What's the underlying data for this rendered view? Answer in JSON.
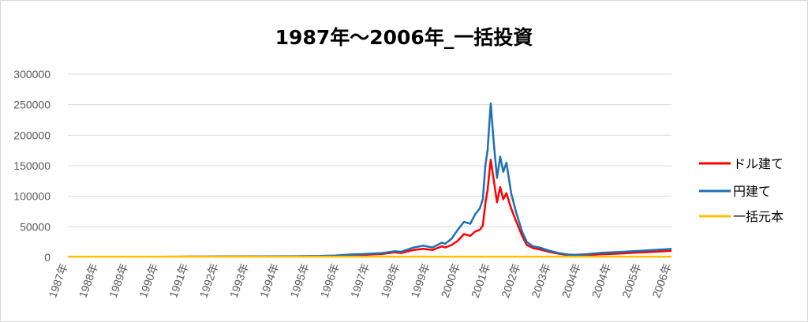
{
  "chart_data": {
    "type": "line",
    "title": "1987年～2006年_一括投資",
    "xlabel": "",
    "ylabel": "",
    "ylim": [
      0,
      300000
    ],
    "yticks": [
      "0",
      "50000",
      "100000",
      "150000",
      "200000",
      "250000",
      "300000"
    ],
    "x_tick_labels": [
      "1987年",
      "1988年",
      "1989年",
      "1990年",
      "1991年",
      "1992年",
      "1993年",
      "1994年",
      "1995年",
      "1996年",
      "1997年",
      "1998年",
      "1999年",
      "2000年",
      "2001年",
      "2002年",
      "2003年",
      "2004年",
      "2004年",
      "2005年",
      "2006年"
    ],
    "grid": true,
    "legend_position": "right",
    "series": [
      {
        "name": "ドル建て",
        "color": "#ff0000",
        "x": [
          1987,
          1988,
          1989,
          1990,
          1991,
          1992,
          1993,
          1994,
          1995,
          1995.5,
          1996,
          1996.5,
          1997,
          1997.4,
          1997.6,
          1998,
          1998.3,
          1998.6,
          1998.9,
          1999,
          1999.2,
          1999.4,
          1999.6,
          1999.8,
          1999.95,
          2000.1,
          2000.2,
          2000.28,
          2000.35,
          2000.45,
          2000.55,
          2000.65,
          2000.75,
          2000.85,
          2000.95,
          2001.1,
          2001.25,
          2001.45,
          2001.6,
          2001.8,
          2002,
          2002.3,
          2002.6,
          2002.9,
          2003.1,
          2003.5,
          2004,
          2004.5,
          2005,
          2005.5,
          2006,
          2006.2
        ],
        "values": [
          1000,
          1000,
          1000,
          1000,
          1200,
          1300,
          1300,
          1500,
          1800,
          2500,
          3500,
          4200,
          5500,
          8000,
          7000,
          12000,
          14000,
          12000,
          18000,
          16000,
          20000,
          27000,
          38000,
          35000,
          42000,
          45000,
          52000,
          88000,
          110000,
          160000,
          125000,
          90000,
          115000,
          95000,
          105000,
          80000,
          60000,
          35000,
          20000,
          15000,
          13000,
          9000,
          6000,
          3500,
          3000,
          3500,
          5000,
          6000,
          7500,
          8500,
          10000,
          10500
        ]
      },
      {
        "name": "円建て",
        "color": "#1f6fb4",
        "x": [
          1987,
          1988,
          1989,
          1990,
          1991,
          1992,
          1993,
          1994,
          1995,
          1995.5,
          1996,
          1996.5,
          1997,
          1997.4,
          1997.6,
          1998,
          1998.3,
          1998.6,
          1998.9,
          1999,
          1999.2,
          1999.4,
          1999.6,
          1999.8,
          1999.95,
          2000.1,
          2000.2,
          2000.28,
          2000.35,
          2000.45,
          2000.55,
          2000.65,
          2000.75,
          2000.85,
          2000.95,
          2001.1,
          2001.25,
          2001.45,
          2001.6,
          2001.8,
          2002,
          2002.3,
          2002.6,
          2002.9,
          2003.1,
          2003.5,
          2004,
          2004.5,
          2005,
          2005.5,
          2006,
          2006.2
        ],
        "values": [
          1000,
          1000,
          1000,
          1000,
          1300,
          1400,
          1500,
          1800,
          2200,
          3000,
          4500,
          5500,
          7000,
          10000,
          9000,
          16000,
          19000,
          16000,
          24000,
          22000,
          30000,
          45000,
          58000,
          55000,
          70000,
          80000,
          95000,
          150000,
          175000,
          252000,
          185000,
          130000,
          165000,
          140000,
          155000,
          105000,
          75000,
          42000,
          25000,
          18000,
          16000,
          11000,
          7000,
          4500,
          4000,
          5000,
          7500,
          8500,
          10000,
          11500,
          13000,
          14000
        ]
      },
      {
        "name": "一括元本",
        "color": "#ffc000",
        "x": [
          1987,
          2006.2
        ],
        "values": [
          1000,
          1000
        ]
      }
    ]
  }
}
